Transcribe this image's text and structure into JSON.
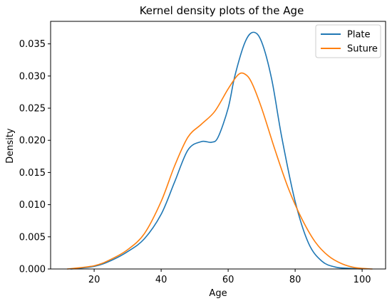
{
  "chart_data": {
    "type": "line",
    "title": "Kernel density plots of the Age",
    "xlabel": "Age",
    "ylabel": "Density",
    "xlim": [
      7,
      107
    ],
    "ylim": [
      0,
      0.0385
    ],
    "xticks": [
      20,
      40,
      60,
      80,
      100
    ],
    "xtick_labels": [
      "20",
      "40",
      "60",
      "80",
      "100"
    ],
    "yticks": [
      0.0,
      0.005,
      0.01,
      0.015,
      0.02,
      0.025,
      0.03,
      0.035
    ],
    "ytick_labels": [
      "0.000",
      "0.005",
      "0.010",
      "0.015",
      "0.020",
      "0.025",
      "0.030",
      "0.035"
    ],
    "grid": false,
    "legend_position": "top-right",
    "series": [
      {
        "name": "Plate",
        "color": "#1f77b4",
        "x": [
          13,
          20,
          25,
          30,
          35,
          40,
          44,
          48,
          52,
          55,
          57,
          60,
          62,
          65,
          67.5,
          70,
          73,
          76,
          80,
          84,
          88,
          92,
          96,
          100
        ],
        "y": [
          0.0,
          0.0004,
          0.0013,
          0.0027,
          0.0047,
          0.0085,
          0.0135,
          0.0185,
          0.0198,
          0.0197,
          0.0205,
          0.025,
          0.03,
          0.0352,
          0.0368,
          0.0353,
          0.0295,
          0.0205,
          0.0105,
          0.004,
          0.0012,
          0.0003,
          0.0001,
          0.0
        ]
      },
      {
        "name": "Suture",
        "color": "#ff7f0e",
        "x": [
          12,
          20,
          25,
          30,
          35,
          40,
          44,
          48,
          52,
          56,
          60,
          63,
          65,
          67,
          70,
          74,
          78,
          82,
          86,
          90,
          94,
          98,
          103
        ],
        "y": [
          0.0,
          0.0005,
          0.0015,
          0.003,
          0.0055,
          0.0105,
          0.016,
          0.0205,
          0.0225,
          0.0245,
          0.028,
          0.0302,
          0.0303,
          0.029,
          0.025,
          0.0185,
          0.0125,
          0.0078,
          0.0042,
          0.002,
          0.0008,
          0.0002,
          0.0
        ]
      }
    ]
  }
}
